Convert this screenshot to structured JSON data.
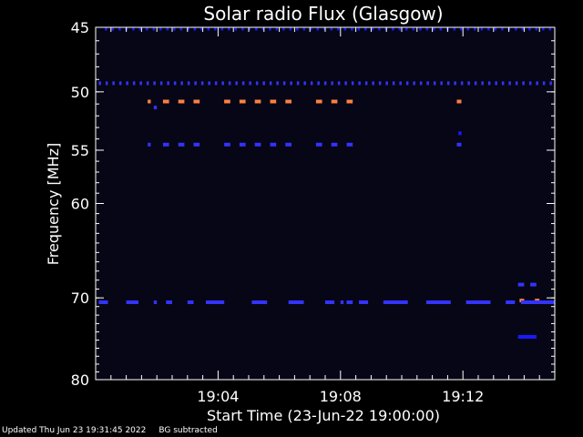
{
  "chart_data": {
    "type": "heatmap",
    "title": "Solar radio Flux (Glasgow)",
    "xlabel": "Start Time (23-Jun-22 19:00:00)",
    "ylabel": "Frequency [MHz]",
    "xlim_minutes": [
      0.0,
      15.0
    ],
    "x_ticks": [
      {
        "minute": 4,
        "label": "19:04"
      },
      {
        "minute": 8,
        "label": "19:08"
      },
      {
        "minute": 12,
        "label": "19:12"
      }
    ],
    "y_ticks": [
      {
        "freq": 45,
        "label": "45"
      },
      {
        "freq": 50,
        "label": "50"
      },
      {
        "freq": 55,
        "label": "55"
      },
      {
        "freq": 60,
        "label": "60"
      },
      {
        "freq": 70,
        "label": "70"
      },
      {
        "freq": 80,
        "label": "80"
      }
    ],
    "y_reversed": true,
    "y_scale": "log",
    "background_color": "#060616",
    "colors": {
      "low": "#1a1aff",
      "mid": "#3333ff",
      "high": "#ff8040",
      "axes": "#ffffff"
    },
    "bands": [
      {
        "freq": 45.1,
        "intensity": "low",
        "segments": [
          [
            0.3,
            14.9
          ]
        ],
        "dashed": true
      },
      {
        "freq": 49.3,
        "intensity": "mid",
        "segments": [
          [
            0.1,
            14.9
          ]
        ],
        "dashed": true
      },
      {
        "freq": 50.8,
        "intensity": "high",
        "segments": [
          [
            1.7,
            1.8
          ],
          [
            2.2,
            2.4
          ],
          [
            2.7,
            2.9
          ],
          [
            3.2,
            3.4
          ],
          [
            4.2,
            4.4
          ],
          [
            4.7,
            4.9
          ],
          [
            5.2,
            5.4
          ],
          [
            5.7,
            5.9
          ],
          [
            6.2,
            6.4
          ],
          [
            7.2,
            7.4
          ],
          [
            7.7,
            7.9
          ],
          [
            8.2,
            8.4
          ],
          [
            11.8,
            11.95
          ]
        ]
      },
      {
        "freq": 51.3,
        "intensity": "mid",
        "segments": [
          [
            1.9,
            2.0
          ]
        ]
      },
      {
        "freq": 53.5,
        "intensity": "low",
        "segments": [
          [
            11.85,
            11.95
          ]
        ]
      },
      {
        "freq": 54.5,
        "intensity": "mid",
        "segments": [
          [
            1.7,
            1.8
          ],
          [
            2.2,
            2.4
          ],
          [
            2.7,
            2.9
          ],
          [
            3.2,
            3.4
          ],
          [
            4.2,
            4.4
          ],
          [
            4.7,
            4.9
          ],
          [
            5.2,
            5.4
          ],
          [
            5.7,
            5.9
          ],
          [
            6.2,
            6.4
          ],
          [
            7.2,
            7.4
          ],
          [
            7.7,
            7.9
          ],
          [
            8.2,
            8.4
          ],
          [
            11.8,
            11.95
          ]
        ]
      },
      {
        "freq": 68.5,
        "intensity": "mid",
        "segments": [
          [
            13.8,
            14.0
          ],
          [
            14.2,
            14.4
          ]
        ]
      },
      {
        "freq": 70.3,
        "intensity": "high",
        "segments": [
          [
            13.85,
            14.0
          ],
          [
            14.35,
            14.5
          ]
        ]
      },
      {
        "freq": 70.5,
        "intensity": "mid",
        "segments": [
          [
            0.1,
            0.4
          ],
          [
            1.0,
            1.4
          ],
          [
            1.9,
            2.0
          ],
          [
            2.3,
            2.5
          ],
          [
            3.0,
            3.2
          ],
          [
            3.6,
            4.2
          ],
          [
            5.1,
            5.6
          ],
          [
            6.3,
            6.8
          ],
          [
            7.5,
            7.8
          ],
          [
            8.0,
            8.1
          ],
          [
            8.2,
            8.4
          ],
          [
            8.6,
            8.9
          ],
          [
            9.4,
            10.2
          ],
          [
            10.8,
            11.6
          ],
          [
            12.1,
            12.9
          ],
          [
            13.4,
            13.7
          ],
          [
            13.9,
            15.0
          ]
        ]
      },
      {
        "freq": 74.6,
        "intensity": "low",
        "segments": [
          [
            13.8,
            14.4
          ]
        ]
      }
    ]
  },
  "footer": {
    "updated": "Updated Thu Jun 23 19:31:45 2022",
    "note": "BG subtracted"
  }
}
